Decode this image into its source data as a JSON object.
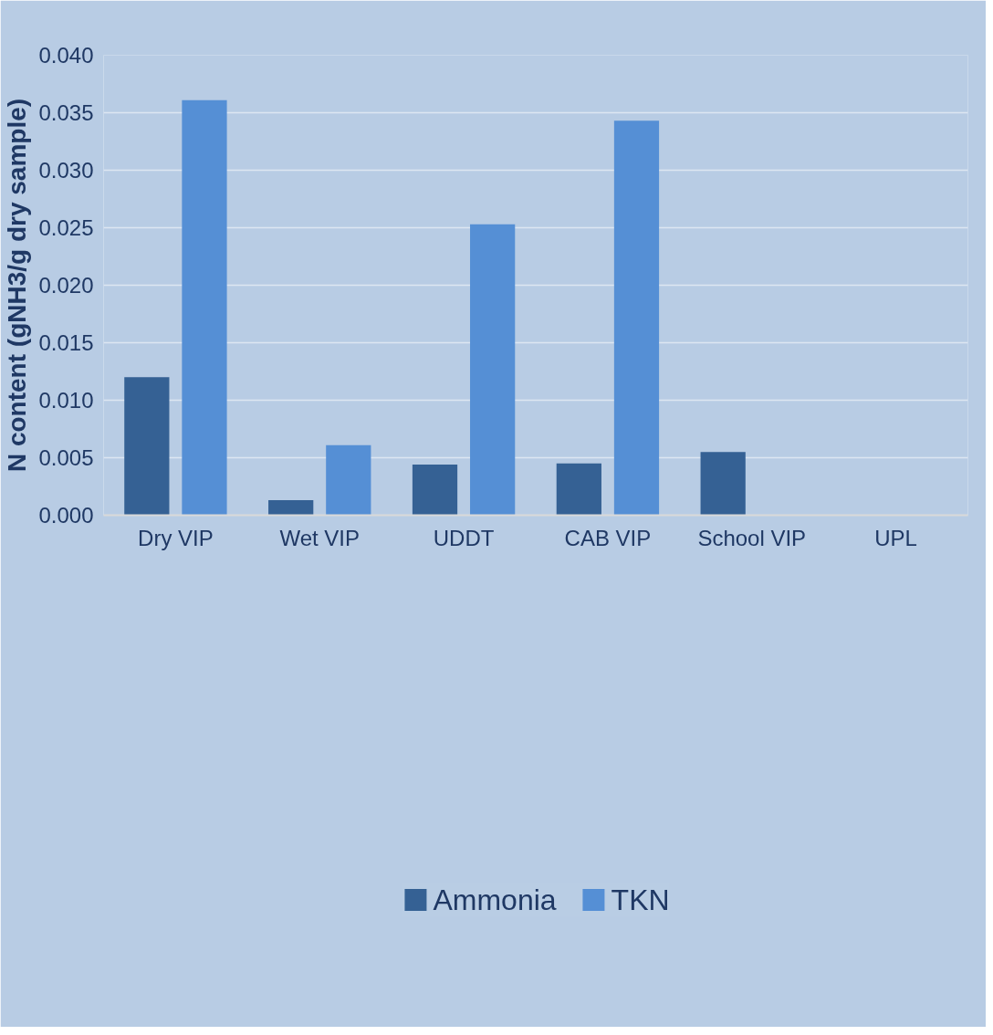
{
  "chart_data": {
    "type": "bar",
    "ylabel": "N content (gNH3/g dry sample)",
    "categories": [
      "Dry VIP",
      "Wet VIP",
      "UDDT",
      "CAB VIP",
      "School VIP",
      "UPL"
    ],
    "series": [
      {
        "name": "Ammonia",
        "color": "#356194",
        "values": [
          0.012,
          0.0013,
          0.0044,
          0.0045,
          0.0055,
          null
        ]
      },
      {
        "name": "TKN",
        "color": "#558fd5",
        "values": [
          0.0361,
          0.0061,
          0.0253,
          0.0343,
          null,
          null
        ]
      }
    ],
    "ylim": [
      0,
      0.04
    ],
    "yticks": [
      {
        "value": 0,
        "label": "0.000"
      },
      {
        "value": 0.005,
        "label": "0.005"
      },
      {
        "value": 0.01,
        "label": "0.010"
      },
      {
        "value": 0.015,
        "label": "0.015"
      },
      {
        "value": 0.02,
        "label": "0.020"
      },
      {
        "value": 0.025,
        "label": "0.025"
      },
      {
        "value": 0.03,
        "label": "0.030"
      },
      {
        "value": 0.035,
        "label": "0.035"
      },
      {
        "value": 0.04,
        "label": "0.040"
      }
    ],
    "grid": "y",
    "legend": "bottom"
  }
}
